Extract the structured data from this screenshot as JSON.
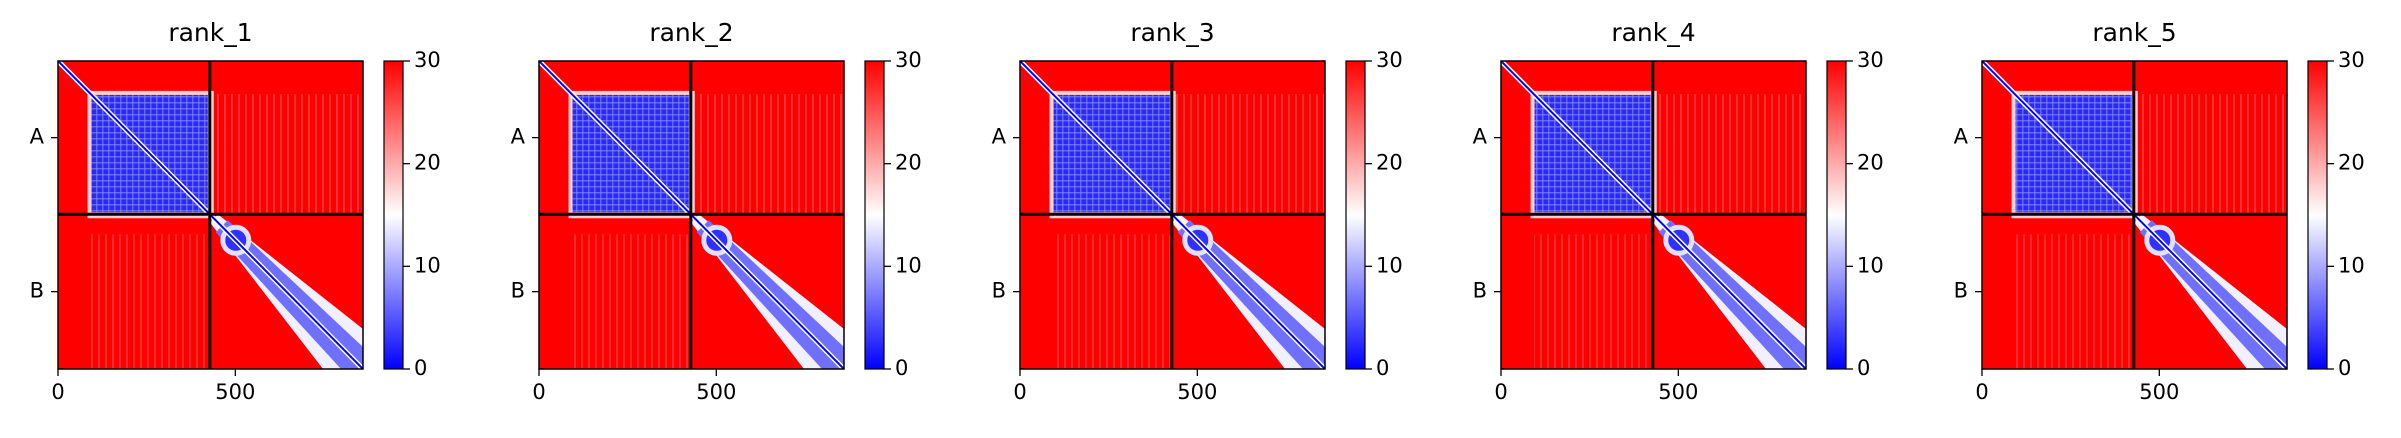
{
  "chart_data": [
    {
      "type": "heatmap",
      "title": "rank_1",
      "xlim": [
        0,
        860
      ],
      "xticks": [
        0,
        500
      ],
      "ylim": [
        860,
        0
      ],
      "yticks": [
        {
          "value": 214,
          "label": "A"
        },
        {
          "value": 644,
          "label": "B"
        }
      ],
      "chain_boundary": 428,
      "clim": [
        0,
        30
      ],
      "cticks": [
        0,
        10,
        20,
        30
      ],
      "colors": [
        "#0000ff",
        "#ffffff",
        "#ff0000"
      ]
    },
    {
      "type": "heatmap",
      "title": "rank_2",
      "xlim": [
        0,
        860
      ],
      "xticks": [
        0,
        500
      ],
      "ylim": [
        860,
        0
      ],
      "yticks": [
        {
          "value": 214,
          "label": "A"
        },
        {
          "value": 644,
          "label": "B"
        }
      ],
      "chain_boundary": 428,
      "clim": [
        0,
        30
      ],
      "cticks": [
        0,
        10,
        20,
        30
      ],
      "colors": [
        "#0000ff",
        "#ffffff",
        "#ff0000"
      ]
    },
    {
      "type": "heatmap",
      "title": "rank_3",
      "xlim": [
        0,
        860
      ],
      "xticks": [
        0,
        500
      ],
      "ylim": [
        860,
        0
      ],
      "yticks": [
        {
          "value": 214,
          "label": "A"
        },
        {
          "value": 644,
          "label": "B"
        }
      ],
      "chain_boundary": 428,
      "clim": [
        0,
        30
      ],
      "cticks": [
        0,
        10,
        20,
        30
      ],
      "colors": [
        "#0000ff",
        "#ffffff",
        "#ff0000"
      ]
    },
    {
      "type": "heatmap",
      "title": "rank_4",
      "xlim": [
        0,
        860
      ],
      "xticks": [
        0,
        500
      ],
      "ylim": [
        860,
        0
      ],
      "yticks": [
        {
          "value": 214,
          "label": "A"
        },
        {
          "value": 644,
          "label": "B"
        }
      ],
      "chain_boundary": 428,
      "clim": [
        0,
        30
      ],
      "cticks": [
        0,
        10,
        20,
        30
      ],
      "colors": [
        "#0000ff",
        "#ffffff",
        "#ff0000"
      ]
    },
    {
      "type": "heatmap",
      "title": "rank_5",
      "xlim": [
        0,
        860
      ],
      "xticks": [
        0,
        500
      ],
      "ylim": [
        860,
        0
      ],
      "yticks": [
        {
          "value": 214,
          "label": "A"
        },
        {
          "value": 644,
          "label": "B"
        }
      ],
      "chain_boundary": 428,
      "clim": [
        0,
        30
      ],
      "cticks": [
        0,
        10,
        20,
        30
      ],
      "colors": [
        "#0000ff",
        "#ffffff",
        "#ff0000"
      ]
    }
  ]
}
